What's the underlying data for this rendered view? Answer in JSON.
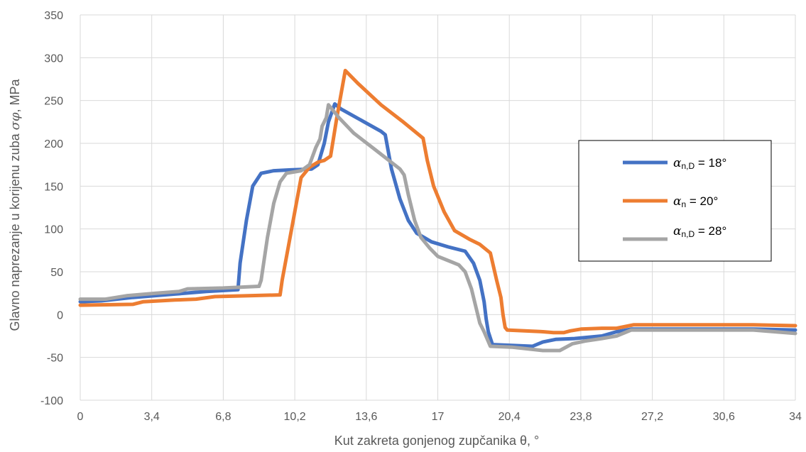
{
  "chart_data": {
    "type": "line",
    "title": "",
    "xlabel": "Kut zakreta gonjenog zupčanika θ, °",
    "ylabel": "Glavno naprezanje u korijenu zuba σφ, MPa",
    "ylabel_parts": [
      "Glavno naprezanje u korijenu zuba ",
      "σφ",
      ", MPa"
    ],
    "xlim": [
      0,
      34
    ],
    "ylim": [
      -100,
      350
    ],
    "x_ticks": [
      "0",
      "3,4",
      "6,8",
      "10,2",
      "13,6",
      "17",
      "20,4",
      "23,8",
      "27,2",
      "30,6",
      "34"
    ],
    "y_ticks": [
      "-100",
      "-50",
      "0",
      "50",
      "100",
      "150",
      "200",
      "250",
      "300",
      "350"
    ],
    "grid": true,
    "legend_position": "right",
    "series": [
      {
        "name": "αn,D = 18°",
        "legend_symbol": "α",
        "legend_subscript": "n,D",
        "legend_value": " = 18°",
        "color": "#4472C4",
        "points": [
          [
            0,
            15
          ],
          [
            1,
            16
          ],
          [
            2.5,
            20
          ],
          [
            4.5,
            24
          ],
          [
            6,
            27
          ],
          [
            7.5,
            29
          ],
          [
            7.6,
            60
          ],
          [
            7.9,
            110
          ],
          [
            8.2,
            150
          ],
          [
            8.6,
            165
          ],
          [
            9.2,
            168
          ],
          [
            10,
            169
          ],
          [
            11,
            170
          ],
          [
            11.3,
            175
          ],
          [
            11.6,
            200
          ],
          [
            11.8,
            225
          ],
          [
            12.1,
            246
          ],
          [
            12.4,
            240
          ],
          [
            13.5,
            225
          ],
          [
            14.3,
            214
          ],
          [
            14.5,
            210
          ],
          [
            14.8,
            170
          ],
          [
            15.2,
            135
          ],
          [
            15.6,
            110
          ],
          [
            16,
            95
          ],
          [
            16.7,
            85
          ],
          [
            17.5,
            79
          ],
          [
            18.3,
            74
          ],
          [
            18.7,
            60
          ],
          [
            19,
            40
          ],
          [
            19.2,
            15
          ],
          [
            19.3,
            -5
          ],
          [
            19.4,
            -20
          ],
          [
            19.6,
            -35
          ],
          [
            20.5,
            -36
          ],
          [
            21.5,
            -37
          ],
          [
            22,
            -32
          ],
          [
            22.6,
            -29
          ],
          [
            23.5,
            -28
          ],
          [
            24.8,
            -25
          ],
          [
            25.5,
            -20
          ],
          [
            26.2,
            -17
          ],
          [
            28,
            -17
          ],
          [
            30.6,
            -17
          ],
          [
            32,
            -17
          ],
          [
            34,
            -18
          ]
        ]
      },
      {
        "name": "αn = 20°",
        "legend_symbol": "α",
        "legend_subscript": "n",
        "legend_value": " = 20°",
        "color": "#ED7D31",
        "points": [
          [
            0,
            11
          ],
          [
            2.5,
            12
          ],
          [
            3,
            15
          ],
          [
            4.5,
            17
          ],
          [
            5.5,
            18
          ],
          [
            6.4,
            21
          ],
          [
            8,
            22
          ],
          [
            9.5,
            23
          ],
          [
            9.6,
            40
          ],
          [
            9.9,
            80
          ],
          [
            10.2,
            120
          ],
          [
            10.5,
            160
          ],
          [
            10.9,
            172
          ],
          [
            11.3,
            178
          ],
          [
            11.6,
            180
          ],
          [
            11.9,
            185
          ],
          [
            12.2,
            230
          ],
          [
            12.6,
            285
          ],
          [
            13.2,
            270
          ],
          [
            14.3,
            245
          ],
          [
            15.3,
            226
          ],
          [
            16.3,
            206
          ],
          [
            16.5,
            180
          ],
          [
            16.8,
            150
          ],
          [
            17.3,
            120
          ],
          [
            17.8,
            98
          ],
          [
            18.5,
            88
          ],
          [
            19,
            82
          ],
          [
            19.5,
            72
          ],
          [
            19.8,
            40
          ],
          [
            20,
            20
          ],
          [
            20.1,
            0
          ],
          [
            20.2,
            -15
          ],
          [
            20.3,
            -18
          ],
          [
            22,
            -20
          ],
          [
            22.5,
            -21
          ],
          [
            23,
            -21
          ],
          [
            23.3,
            -19
          ],
          [
            23.8,
            -17
          ],
          [
            24.8,
            -16
          ],
          [
            25.5,
            -16
          ],
          [
            26.3,
            -12
          ],
          [
            28,
            -12
          ],
          [
            30,
            -12
          ],
          [
            32,
            -12
          ],
          [
            34,
            -13
          ]
        ]
      },
      {
        "name": "αn,D = 28°",
        "legend_symbol": "α",
        "legend_subscript": "n,D",
        "legend_value": " = 28°",
        "color": "#A5A5A5",
        "points": [
          [
            0,
            18
          ],
          [
            1.2,
            18
          ],
          [
            2.2,
            22
          ],
          [
            3.6,
            25
          ],
          [
            4.7,
            27
          ],
          [
            5.1,
            30
          ],
          [
            6.8,
            31
          ],
          [
            8.5,
            33
          ],
          [
            8.6,
            40
          ],
          [
            8.9,
            90
          ],
          [
            9.2,
            130
          ],
          [
            9.5,
            155
          ],
          [
            9.8,
            165
          ],
          [
            10.5,
            168
          ],
          [
            10.9,
            175
          ],
          [
            11.2,
            195
          ],
          [
            11.4,
            205
          ],
          [
            11.5,
            220
          ],
          [
            11.7,
            230
          ],
          [
            11.8,
            245
          ],
          [
            12.3,
            230
          ],
          [
            13,
            212
          ],
          [
            14,
            193
          ],
          [
            15.2,
            170
          ],
          [
            15.4,
            163
          ],
          [
            15.6,
            140
          ],
          [
            15.9,
            110
          ],
          [
            16.2,
            90
          ],
          [
            16.6,
            78
          ],
          [
            17,
            68
          ],
          [
            17.6,
            62
          ],
          [
            18,
            58
          ],
          [
            18.3,
            50
          ],
          [
            18.6,
            30
          ],
          [
            18.8,
            10
          ],
          [
            19,
            -10
          ],
          [
            19.2,
            -20
          ],
          [
            19.5,
            -37
          ],
          [
            20.5,
            -38
          ],
          [
            22,
            -42
          ],
          [
            22.8,
            -42
          ],
          [
            23.4,
            -34
          ],
          [
            24,
            -31
          ],
          [
            24.8,
            -28
          ],
          [
            25.5,
            -25
          ],
          [
            26.2,
            -18
          ],
          [
            28,
            -18
          ],
          [
            30,
            -18
          ],
          [
            32,
            -18
          ],
          [
            34,
            -22
          ]
        ]
      }
    ]
  }
}
